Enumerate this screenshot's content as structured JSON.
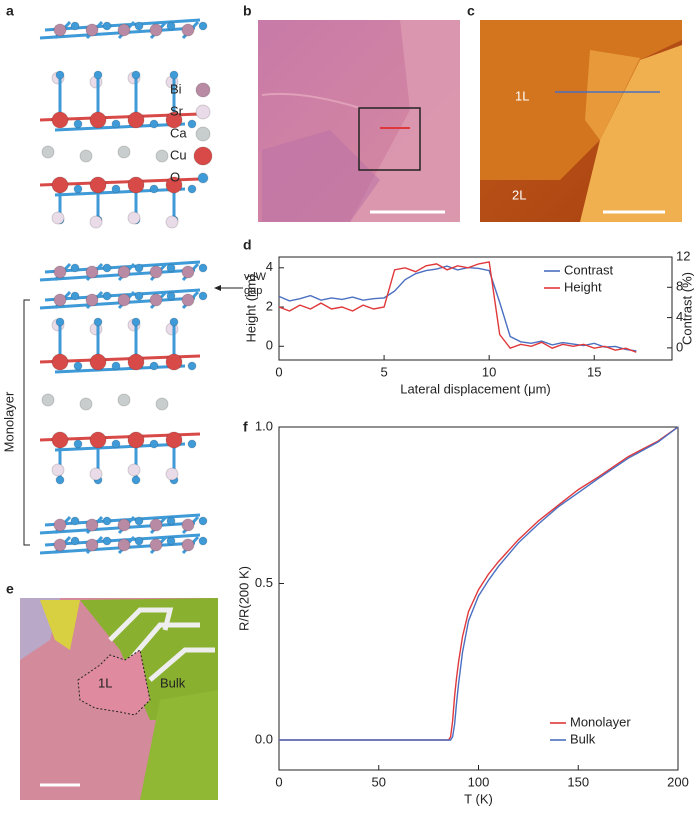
{
  "panel_labels": [
    "a",
    "b",
    "c",
    "d",
    "e",
    "f"
  ],
  "structure": {
    "legend": [
      "Bi",
      "Sr",
      "Ca",
      "Cu",
      "O"
    ],
    "vdw_label": "vdW gap",
    "monolayer_label": "Monolayer"
  },
  "image_c": {
    "labels": [
      "1L",
      "2L"
    ]
  },
  "image_e": {
    "labels": [
      "1L",
      "Bulk"
    ]
  },
  "chart_data": [
    {
      "type": "line",
      "x_label": "Lateral displacement (μm)",
      "y_label": "Height (nm)",
      "y2_label": "Contrast (%)",
      "x": [
        0,
        0.5,
        1,
        1.5,
        2,
        2.5,
        3,
        3.5,
        4,
        4.5,
        5,
        5.5,
        6,
        6.5,
        7,
        7.5,
        8,
        8.5,
        9,
        9.5,
        10,
        10.5,
        11,
        11.5,
        12,
        12.5,
        13,
        13.5,
        14,
        14.5,
        15,
        15.5,
        16,
        16.5,
        17
      ],
      "series": [
        {
          "name": "Contrast",
          "color": "#4a6fc0",
          "axis": "y2",
          "values": [
            6.8,
            6.2,
            6.5,
            6.9,
            6.3,
            6.6,
            6.4,
            6.7,
            6.3,
            6.5,
            6.6,
            7.5,
            9.0,
            9.8,
            10.2,
            10.4,
            10.8,
            10.3,
            10.6,
            10.5,
            10.2,
            6.0,
            1.5,
            0.8,
            0.6,
            0.9,
            0.4,
            0.7,
            0.5,
            0.3,
            0.6,
            0.1,
            0.2,
            -0.2,
            -0.4
          ]
        },
        {
          "name": "Height",
          "color": "#e0383a",
          "values": [
            2.0,
            1.8,
            2.1,
            1.9,
            2.2,
            1.9,
            2.0,
            1.8,
            2.1,
            1.9,
            2.0,
            3.9,
            4.0,
            3.8,
            4.1,
            4.2,
            3.9,
            4.1,
            4.0,
            4.2,
            4.3,
            0.6,
            -0.1,
            0.1,
            0.0,
            0.2,
            -0.1,
            0.1,
            0.0,
            0.1,
            -0.1,
            0.0,
            -0.2,
            -0.1,
            -0.3
          ]
        }
      ],
      "xlim": [
        0,
        18.7
      ],
      "xticks": [
        0,
        5,
        10,
        15
      ],
      "ylim": [
        -0.7,
        4.55
      ],
      "yticks": [
        0,
        2,
        4
      ],
      "y2lim": [
        -1.6,
        12
      ],
      "y2ticks": [
        0,
        4,
        8,
        12
      ],
      "legend": "upper right"
    },
    {
      "type": "line",
      "x_label": "T (K)",
      "y_label": "R/R(200 K)",
      "x": [
        0,
        20,
        40,
        60,
        80,
        85,
        86,
        87,
        88,
        89,
        90,
        92,
        95,
        100,
        105,
        110,
        120,
        130,
        140,
        150,
        160,
        175,
        190,
        200
      ],
      "series": [
        {
          "name": "Monolayer",
          "color": "#e0383a",
          "values": [
            0,
            0,
            0,
            0,
            0,
            0,
            0.01,
            0.06,
            0.14,
            0.2,
            0.25,
            0.33,
            0.41,
            0.48,
            0.53,
            0.57,
            0.64,
            0.7,
            0.75,
            0.8,
            0.84,
            0.905,
            0.955,
            1.0
          ]
        },
        {
          "name": "Bulk",
          "color": "#4a6fc0",
          "values": [
            0,
            0,
            0,
            0,
            0,
            0,
            0,
            0.01,
            0.05,
            0.12,
            0.18,
            0.28,
            0.38,
            0.46,
            0.51,
            0.555,
            0.63,
            0.69,
            0.745,
            0.79,
            0.835,
            0.9,
            0.952,
            1.0
          ]
        }
      ],
      "xlim": [
        0,
        200
      ],
      "xticks": [
        0,
        50,
        100,
        150,
        200
      ],
      "ylim": [
        -0.096,
        1.0
      ],
      "yticks": [
        {
          "value": 0,
          "label": "0.0"
        },
        {
          "value": 0.5,
          "label": "0.5"
        },
        {
          "value": 1,
          "label": "1.0"
        }
      ],
      "legend": "lower right"
    }
  ]
}
